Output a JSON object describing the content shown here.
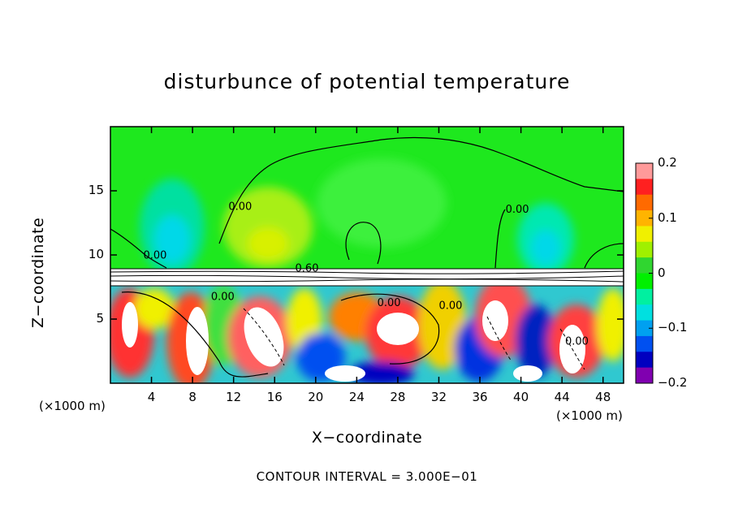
{
  "chart_data": {
    "type": "heatmap",
    "title": "disturbunce of potential temperature",
    "xlabel": "X−coordinate",
    "ylabel": "Z−coordinate",
    "x_unit_label": "(×1000 m)",
    "x_unit_label_right": "(×1000 m)",
    "xlim": [
      0,
      50
    ],
    "ylim": [
      0,
      20
    ],
    "x_ticks": [
      4,
      8,
      12,
      16,
      20,
      24,
      28,
      32,
      36,
      40,
      44,
      48
    ],
    "x_tick_labels": [
      "4",
      "8",
      "12",
      "16",
      "20",
      "24",
      "28",
      "32",
      "36",
      "40",
      "44",
      "48"
    ],
    "y_ticks": [
      5,
      10,
      15
    ],
    "y_tick_labels": [
      "5",
      "10",
      "15"
    ],
    "colorbar": {
      "range": [
        -0.2,
        0.2
      ],
      "ticks": [
        0.2,
        0.1,
        0,
        -0.1,
        -0.2
      ],
      "tick_labels": [
        "0.2",
        "0.1",
        "0",
        "−0.1",
        "−0.2"
      ],
      "colors": [
        "#ff9a9a",
        "#ff2020",
        "#ff6a00",
        "#ffb400",
        "#f0f000",
        "#a0f000",
        "#30d630",
        "#00f000",
        "#00f0a0",
        "#00e0e0",
        "#00a0f0",
        "#0050f0",
        "#0000c0",
        "#8000b0"
      ]
    },
    "contour_labels": [
      {
        "x": 11.5,
        "y": 13.5,
        "text": "0.00"
      },
      {
        "x": 3.2,
        "y": 9.7,
        "text": "0.00"
      },
      {
        "x": 18.0,
        "y": 8.7,
        "text": "0.60"
      },
      {
        "x": 38.5,
        "y": 13.3,
        "text": "0.00"
      },
      {
        "x": 26.0,
        "y": 6.0,
        "text": "0.00"
      },
      {
        "x": 32.0,
        "y": 5.8,
        "text": "0.00"
      },
      {
        "x": 9.8,
        "y": 6.5,
        "text": "0.00"
      },
      {
        "x": 44.3,
        "y": 3.0,
        "text": "0.00"
      }
    ],
    "contour_interval_text": "CONTOUR INTERVAL =  3.000E−01"
  }
}
